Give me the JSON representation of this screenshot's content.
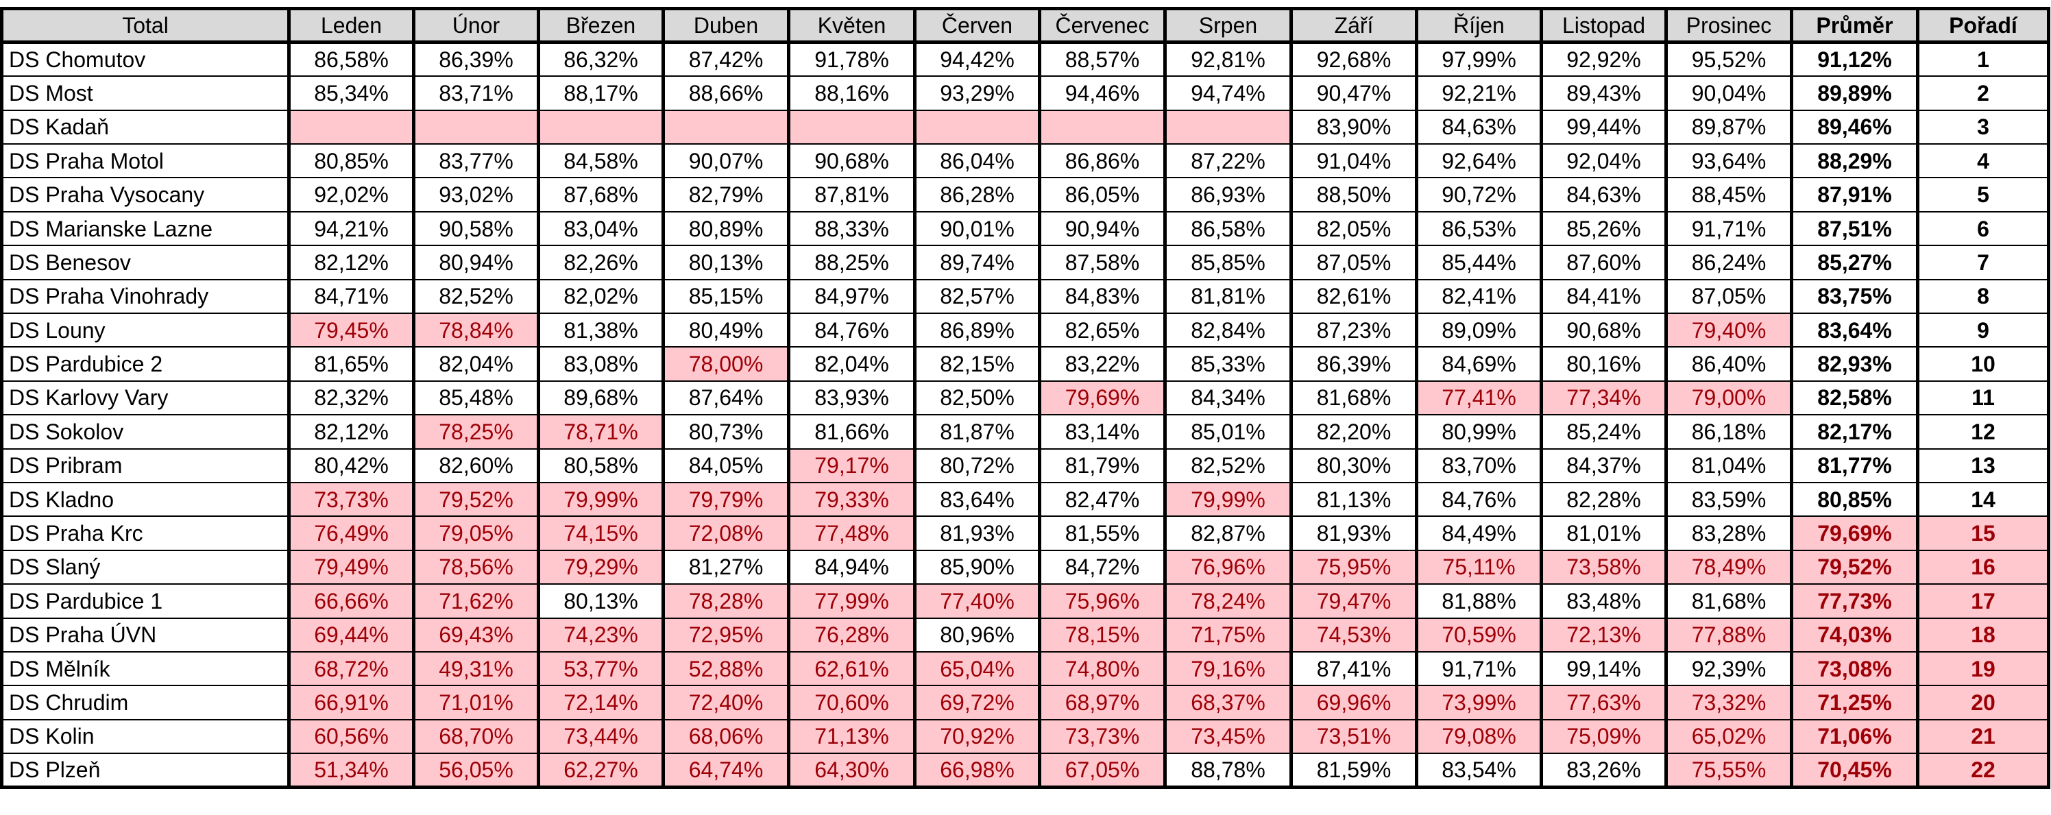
{
  "table": {
    "headers": [
      "Total",
      "Leden",
      "Únor",
      "Březen",
      "Duben",
      "Květen",
      "Červen",
      "Červenec",
      "Srpen",
      "Září",
      "Říjen",
      "Listopad",
      "Prosinec",
      "Průměr",
      "Pořadí"
    ],
    "rows": [
      {
        "name": "DS Chomutov",
        "months": [
          "86,58%",
          "86,39%",
          "86,32%",
          "87,42%",
          "91,78%",
          "94,42%",
          "88,57%",
          "92,81%",
          "92,68%",
          "97,99%",
          "92,92%",
          "95,52%"
        ],
        "avg": "91,12%",
        "rank": "1"
      },
      {
        "name": "DS Most",
        "months": [
          "85,34%",
          "83,71%",
          "88,17%",
          "88,66%",
          "88,16%",
          "93,29%",
          "94,46%",
          "94,74%",
          "90,47%",
          "92,21%",
          "89,43%",
          "90,04%"
        ],
        "avg": "89,89%",
        "rank": "2"
      },
      {
        "name": "DS Kadaň",
        "months": [
          "",
          "",
          "",
          "",
          "",
          "",
          "",
          "",
          "83,90%",
          "84,63%",
          "99,44%",
          "89,87%"
        ],
        "avg": "89,46%",
        "rank": "3"
      },
      {
        "name": "DS Praha Motol",
        "months": [
          "80,85%",
          "83,77%",
          "84,58%",
          "90,07%",
          "90,68%",
          "86,04%",
          "86,86%",
          "87,22%",
          "91,04%",
          "92,64%",
          "92,04%",
          "93,64%"
        ],
        "avg": "88,29%",
        "rank": "4"
      },
      {
        "name": "DS Praha Vysocany",
        "months": [
          "92,02%",
          "93,02%",
          "87,68%",
          "82,79%",
          "87,81%",
          "86,28%",
          "86,05%",
          "86,93%",
          "88,50%",
          "90,72%",
          "84,63%",
          "88,45%"
        ],
        "avg": "87,91%",
        "rank": "5"
      },
      {
        "name": "DS Marianske Lazne",
        "months": [
          "94,21%",
          "90,58%",
          "83,04%",
          "80,89%",
          "88,33%",
          "90,01%",
          "90,94%",
          "86,58%",
          "82,05%",
          "86,53%",
          "85,26%",
          "91,71%"
        ],
        "avg": "87,51%",
        "rank": "6"
      },
      {
        "name": "DS Benesov",
        "months": [
          "82,12%",
          "80,94%",
          "82,26%",
          "80,13%",
          "88,25%",
          "89,74%",
          "87,58%",
          "85,85%",
          "87,05%",
          "85,44%",
          "87,60%",
          "86,24%"
        ],
        "avg": "85,27%",
        "rank": "7"
      },
      {
        "name": "DS Praha Vinohrady",
        "months": [
          "84,71%",
          "82,52%",
          "82,02%",
          "85,15%",
          "84,97%",
          "82,57%",
          "84,83%",
          "81,81%",
          "82,61%",
          "82,41%",
          "84,41%",
          "87,05%"
        ],
        "avg": "83,75%",
        "rank": "8"
      },
      {
        "name": "DS Louny",
        "months": [
          "79,45%",
          "78,84%",
          "81,38%",
          "80,49%",
          "84,76%",
          "86,89%",
          "82,65%",
          "82,84%",
          "87,23%",
          "89,09%",
          "90,68%",
          "79,40%"
        ],
        "avg": "83,64%",
        "rank": "9"
      },
      {
        "name": "DS Pardubice 2",
        "months": [
          "81,65%",
          "82,04%",
          "83,08%",
          "78,00%",
          "82,04%",
          "82,15%",
          "83,22%",
          "85,33%",
          "86,39%",
          "84,69%",
          "80,16%",
          "86,40%"
        ],
        "avg": "82,93%",
        "rank": "10"
      },
      {
        "name": "DS Karlovy Vary",
        "months": [
          "82,32%",
          "85,48%",
          "89,68%",
          "87,64%",
          "83,93%",
          "82,50%",
          "79,69%",
          "84,34%",
          "81,68%",
          "77,41%",
          "77,34%",
          "79,00%"
        ],
        "avg": "82,58%",
        "rank": "11"
      },
      {
        "name": "DS Sokolov",
        "months": [
          "82,12%",
          "78,25%",
          "78,71%",
          "80,73%",
          "81,66%",
          "81,87%",
          "83,14%",
          "85,01%",
          "82,20%",
          "80,99%",
          "85,24%",
          "86,18%"
        ],
        "avg": "82,17%",
        "rank": "12"
      },
      {
        "name": "DS Pribram",
        "months": [
          "80,42%",
          "82,60%",
          "80,58%",
          "84,05%",
          "79,17%",
          "80,72%",
          "81,79%",
          "82,52%",
          "80,30%",
          "83,70%",
          "84,37%",
          "81,04%"
        ],
        "avg": "81,77%",
        "rank": "13"
      },
      {
        "name": "DS Kladno",
        "months": [
          "73,73%",
          "79,52%",
          "79,99%",
          "79,79%",
          "79,33%",
          "83,64%",
          "82,47%",
          "79,99%",
          "81,13%",
          "84,76%",
          "82,28%",
          "83,59%"
        ],
        "avg": "80,85%",
        "rank": "14"
      },
      {
        "name": "DS Praha Krc",
        "months": [
          "76,49%",
          "79,05%",
          "74,15%",
          "72,08%",
          "77,48%",
          "81,93%",
          "81,55%",
          "82,87%",
          "81,93%",
          "84,49%",
          "81,01%",
          "83,28%"
        ],
        "avg": "79,69%",
        "rank": "15"
      },
      {
        "name": "DS Slaný",
        "months": [
          "79,49%",
          "78,56%",
          "79,29%",
          "81,27%",
          "84,94%",
          "85,90%",
          "84,72%",
          "76,96%",
          "75,95%",
          "75,11%",
          "73,58%",
          "78,49%"
        ],
        "avg": "79,52%",
        "rank": "16"
      },
      {
        "name": "DS Pardubice 1",
        "months": [
          "66,66%",
          "71,62%",
          "80,13%",
          "78,28%",
          "77,99%",
          "77,40%",
          "75,96%",
          "78,24%",
          "79,47%",
          "81,88%",
          "83,48%",
          "81,68%"
        ],
        "avg": "77,73%",
        "rank": "17"
      },
      {
        "name": "DS Praha ÚVN",
        "months": [
          "69,44%",
          "69,43%",
          "74,23%",
          "72,95%",
          "76,28%",
          "80,96%",
          "78,15%",
          "71,75%",
          "74,53%",
          "70,59%",
          "72,13%",
          "77,88%"
        ],
        "avg": "74,03%",
        "rank": "18"
      },
      {
        "name": "DS Mělník",
        "months": [
          "68,72%",
          "49,31%",
          "53,77%",
          "52,88%",
          "62,61%",
          "65,04%",
          "74,80%",
          "79,16%",
          "87,41%",
          "91,71%",
          "99,14%",
          "92,39%"
        ],
        "avg": "73,08%",
        "rank": "19"
      },
      {
        "name": "DS Chrudim",
        "months": [
          "66,91%",
          "71,01%",
          "72,14%",
          "72,40%",
          "70,60%",
          "69,72%",
          "68,97%",
          "68,37%",
          "69,96%",
          "73,99%",
          "77,63%",
          "73,32%"
        ],
        "avg": "71,25%",
        "rank": "20"
      },
      {
        "name": "DS Kolin",
        "months": [
          "60,56%",
          "68,70%",
          "73,44%",
          "68,06%",
          "71,13%",
          "70,92%",
          "73,73%",
          "73,45%",
          "73,51%",
          "79,08%",
          "75,09%",
          "65,02%"
        ],
        "avg": "71,06%",
        "rank": "21"
      },
      {
        "name": "DS Plzeň",
        "months": [
          "51,34%",
          "56,05%",
          "62,27%",
          "64,74%",
          "64,30%",
          "66,98%",
          "67,05%",
          "88,78%",
          "81,59%",
          "83,54%",
          "83,26%",
          "75,55%"
        ],
        "avg": "70,45%",
        "rank": "22"
      }
    ]
  },
  "highlight": {
    "threshold_percent": 80,
    "fill_color": "#ffc7ce",
    "text_color": "#9c0006",
    "header_fill": "#d9d9d9"
  }
}
